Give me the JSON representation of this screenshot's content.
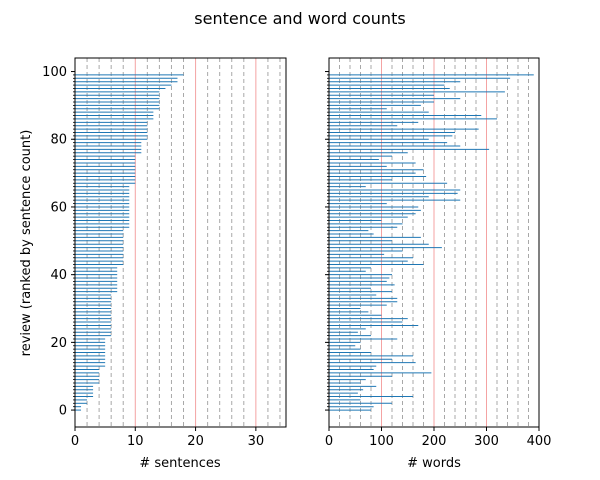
{
  "title": "sentence and word counts",
  "chart_data": [
    {
      "type": "bar",
      "orientation": "horizontal",
      "xlabel": "# sentences",
      "ylabel": "review (ranked by sentence count)",
      "xlim": [
        0,
        35
      ],
      "ylim": [
        -5,
        104
      ],
      "xticks": [
        "0",
        "10",
        "20",
        "30"
      ],
      "yticks": [
        "0",
        "20",
        "40",
        "60",
        "80",
        "100"
      ],
      "grid": "vertical",
      "minor_gridlines_dashed_every": 2,
      "major_gridlines_red": [
        10,
        20,
        30
      ],
      "bar_color": "#1f77b4",
      "values": [
        1,
        1,
        2,
        2,
        3,
        3,
        3,
        3,
        4,
        4,
        4,
        4,
        4,
        5,
        5,
        5,
        5,
        5,
        5,
        5,
        5,
        5,
        6,
        6,
        6,
        6,
        6,
        6,
        6,
        6,
        6,
        6,
        6,
        6,
        6,
        7,
        7,
        7,
        7,
        7,
        7,
        7,
        7,
        8,
        8,
        8,
        8,
        8,
        8,
        8,
        8,
        8,
        8,
        8,
        9,
        9,
        9,
        9,
        9,
        9,
        9,
        9,
        9,
        9,
        9,
        9,
        9,
        10,
        10,
        10,
        10,
        10,
        10,
        10,
        10,
        10,
        11,
        11,
        11,
        11,
        12,
        12,
        12,
        12,
        12,
        12,
        13,
        13,
        13,
        14,
        14,
        14,
        14,
        14,
        14,
        15,
        16,
        17,
        17,
        18
      ]
    },
    {
      "type": "bar",
      "orientation": "horizontal",
      "xlabel": "# words",
      "ylabel": "",
      "xlim": [
        0,
        400
      ],
      "ylim": [
        -5,
        104
      ],
      "xticks": [
        "0",
        "100",
        "200",
        "300",
        "400"
      ],
      "yticks": [],
      "grid": "vertical",
      "minor_gridlines_dashed_every": 20,
      "major_gridlines_red": [
        100,
        200,
        300
      ],
      "bar_color": "#1f77b4",
      "values": [
        80,
        85,
        120,
        60,
        160,
        55,
        65,
        90,
        60,
        70,
        120,
        195,
        85,
        90,
        165,
        120,
        160,
        80,
        60,
        50,
        60,
        130,
        80,
        55,
        70,
        170,
        140,
        150,
        100,
        75,
        60,
        110,
        130,
        130,
        90,
        120,
        80,
        125,
        110,
        115,
        120,
        70,
        80,
        180,
        150,
        160,
        105,
        140,
        215,
        190,
        120,
        175,
        85,
        75,
        130,
        140,
        100,
        150,
        165,
        175,
        170,
        110,
        250,
        190,
        245,
        250,
        70,
        225,
        120,
        185,
        165,
        180,
        110,
        165,
        95,
        120,
        150,
        305,
        250,
        225,
        190,
        235,
        240,
        285,
        130,
        170,
        320,
        290,
        190,
        110,
        175,
        200,
        250,
        200,
        335,
        230,
        220,
        250,
        345,
        390
      ]
    }
  ]
}
